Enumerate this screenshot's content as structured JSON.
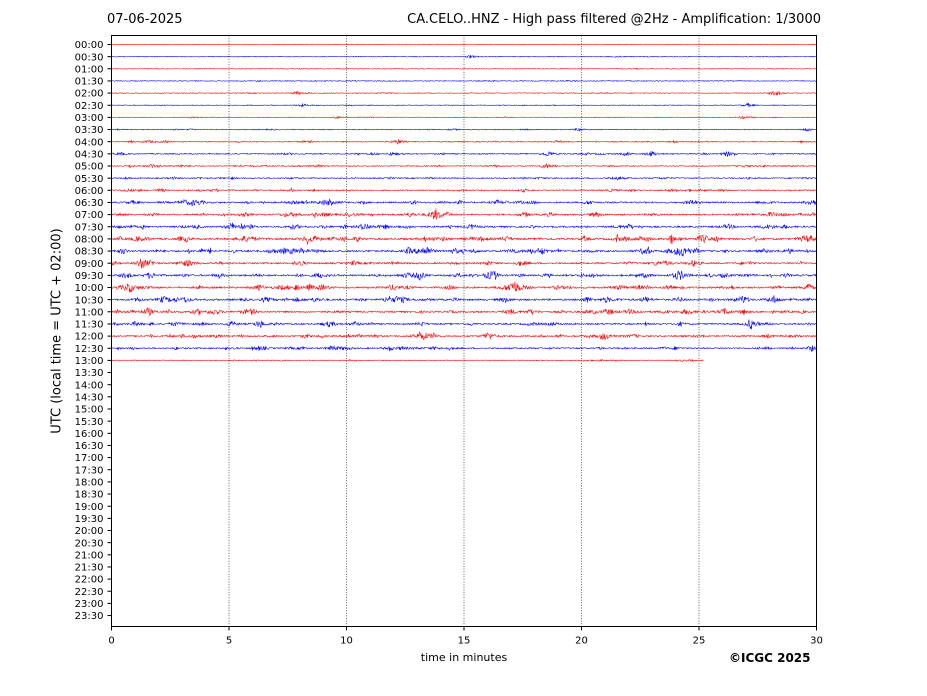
{
  "header": {
    "date": "07-06-2025",
    "title": "CA.CELO..HNZ - High pass filtered @2Hz - Amplification: 1/3000"
  },
  "footer": {
    "copyright": "©ICGC 2025"
  },
  "colors": {
    "trace_a": "#ff0000",
    "trace_b": "#0000ff",
    "frame": "#000000",
    "gridline": "#000000"
  },
  "chart_data": {
    "type": "line",
    "title": "CA.CELO..HNZ - High pass filtered @2Hz - Amplification: 1/3000",
    "xlabel": "time in minutes",
    "ylabel": "UTC (local time = UTC + 02:00)",
    "xlim": [
      0,
      30
    ],
    "x_ticks": [
      0,
      5,
      10,
      15,
      20,
      25,
      30
    ],
    "vertical_grid": "dotted at every x tick",
    "row_labels": [
      "00:00",
      "00:30",
      "01:00",
      "01:30",
      "02:00",
      "02:30",
      "03:00",
      "03:30",
      "04:00",
      "04:30",
      "05:00",
      "05:30",
      "06:00",
      "06:30",
      "07:00",
      "07:30",
      "08:00",
      "08:30",
      "09:00",
      "09:30",
      "10:00",
      "10:30",
      "11:00",
      "11:30",
      "12:00",
      "12:30",
      "13:00",
      "13:30",
      "14:00",
      "14:30",
      "15:00",
      "15:30",
      "16:00",
      "16:30",
      "17:00",
      "17:30",
      "18:00",
      "18:30",
      "19:00",
      "19:30",
      "20:00",
      "20:30",
      "21:00",
      "21:30",
      "22:00",
      "22:30",
      "23:00",
      "23:30"
    ],
    "trace_colors_alternate": [
      "red",
      "blue"
    ],
    "recorded_rows": 27,
    "last_row_end_minute": 25.2,
    "row_activity": [
      0.03,
      0.12,
      0.1,
      0.16,
      0.14,
      0.13,
      0.13,
      0.16,
      0.28,
      0.32,
      0.3,
      0.33,
      0.4,
      0.55,
      0.55,
      0.6,
      0.75,
      0.7,
      0.6,
      0.65,
      0.7,
      0.7,
      0.65,
      0.55,
      0.6,
      0.5,
      0.2
    ],
    "events": [
      {
        "row": "00:30",
        "minute": 15.3,
        "amp": 0.45
      },
      {
        "row": "02:00",
        "minute": 7.9,
        "amp": 0.5
      },
      {
        "row": "02:00",
        "minute": 28.3,
        "amp": 0.6
      },
      {
        "row": "02:30",
        "minute": 8.1,
        "amp": 0.45
      },
      {
        "row": "02:30",
        "minute": 27.1,
        "amp": 0.55
      },
      {
        "row": "03:00",
        "minute": 9.6,
        "amp": 0.4
      },
      {
        "row": "03:00",
        "minute": 26.9,
        "amp": 0.55
      },
      {
        "row": "03:30",
        "minute": 19.9,
        "amp": 0.5
      },
      {
        "row": "03:30",
        "minute": 29.6,
        "amp": 0.55
      },
      {
        "row": "04:00",
        "minute": 12.2,
        "amp": 0.65
      },
      {
        "row": "04:30",
        "minute": 18.6,
        "amp": 0.75
      },
      {
        "row": "04:30",
        "minute": 23.0,
        "amp": 0.8
      },
      {
        "row": "04:30",
        "minute": 26.2,
        "amp": 0.75
      },
      {
        "row": "05:00",
        "minute": 1.7,
        "amp": 0.55
      },
      {
        "row": "05:00",
        "minute": 18.5,
        "amp": 0.6
      },
      {
        "row": "06:30",
        "minute": 9.3,
        "amp": 0.7
      },
      {
        "row": "06:30",
        "minute": 29.8,
        "amp": 0.75
      },
      {
        "row": "07:00",
        "minute": 13.8,
        "amp": 1.4
      },
      {
        "row": "07:00",
        "minute": 28.1,
        "amp": 0.65
      },
      {
        "row": "07:30",
        "minute": 10.7,
        "amp": 0.8
      },
      {
        "row": "08:00",
        "minute": 29.5,
        "amp": 0.9
      },
      {
        "row": "08:30",
        "minute": 18.3,
        "amp": 0.95
      },
      {
        "row": "08:30",
        "minute": 24.3,
        "amp": 0.7
      },
      {
        "row": "09:30",
        "minute": 24.1,
        "amp": 0.8
      },
      {
        "row": "10:00",
        "minute": 17.1,
        "amp": 2.0
      },
      {
        "row": "10:30",
        "minute": 28.2,
        "amp": 1.0
      },
      {
        "row": "11:30",
        "minute": 9.3,
        "amp": 0.85
      },
      {
        "row": "12:30",
        "minute": 9.4,
        "amp": 0.7
      },
      {
        "row": "12:30",
        "minute": 29.8,
        "amp": 0.6
      }
    ]
  }
}
